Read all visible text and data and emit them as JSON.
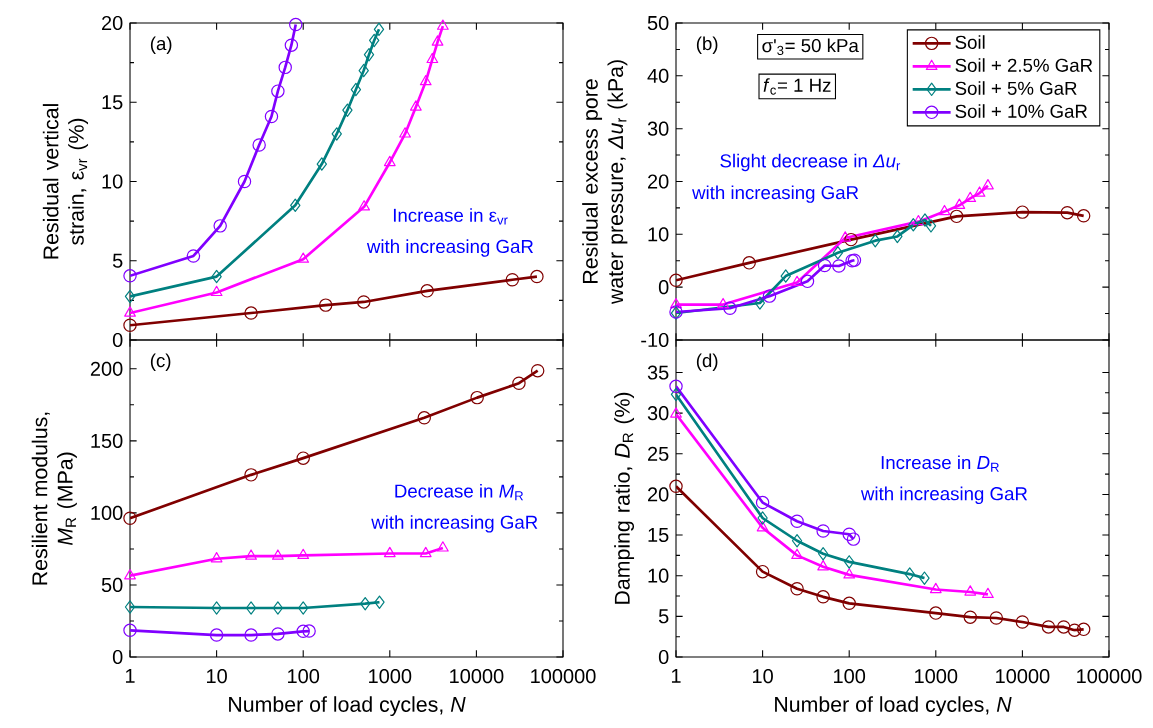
{
  "chart_data": [
    {
      "type": "line",
      "ylabel": "Residual vertical strain, ε$_{vr}$ (%)",
      "log": "x",
      "xlim": [
        1,
        100000
      ],
      "xticks": [
        1,
        10,
        100,
        1000,
        10000,
        100000
      ],
      "ylim": [
        0,
        20
      ],
      "yticks": [
        0,
        5,
        10,
        15,
        20
      ],
      "tick_labels": "y",
      "annotations": [
        "(a)",
        "Increase in ε$_{vr}$",
        "with increasing GaR"
      ],
      "series": [
        {
          "color": "#800000",
          "marker": "circle",
          "x": [
            1,
            25,
            182,
            500,
            2700,
            26000,
            50000
          ],
          "values": [
            0.93,
            1.7,
            2.2,
            2.4,
            3.1,
            3.8,
            4.0
          ]
        },
        {
          "color": "#ff00ff",
          "marker": "triangle",
          "x": [
            1,
            10,
            100,
            505,
            1000,
            1500,
            2000,
            2600,
            3100,
            3560,
            4100
          ],
          "values": [
            1.7,
            3.0,
            5.1,
            8.4,
            11.2,
            13.0,
            14.7,
            16.3,
            17.7,
            18.8,
            19.8
          ]
        },
        {
          "color": "#008080",
          "marker": "diamond",
          "x": [
            1,
            10,
            81,
            164,
            244,
            324,
            406,
            500,
            575,
            660,
            750
          ],
          "values": [
            2.75,
            4.0,
            8.5,
            11.1,
            13.0,
            14.5,
            15.8,
            17.0,
            18.0,
            18.9,
            19.6
          ]
        },
        {
          "color": "#8000ff",
          "marker": "circle",
          "x": [
            1,
            5.4,
            11,
            21,
            31,
            43,
            51,
            62,
            73,
            82
          ],
          "values": [
            4.05,
            5.3,
            7.2,
            10.0,
            12.3,
            14.1,
            15.7,
            17.2,
            18.6,
            19.9
          ]
        }
      ]
    },
    {
      "type": "line",
      "ylabel": "Residual excess pore water pressure, *Δu*$_{r}$ (kPa)",
      "log": "x",
      "xlim": [
        1,
        100000
      ],
      "xticks": [
        1,
        10,
        100,
        1000,
        10000,
        100000
      ],
      "ylim": [
        -10,
        50
      ],
      "yticks": [
        -10,
        0,
        10,
        20,
        30,
        40,
        50
      ],
      "tick_labels": "y",
      "legend": "top right",
      "annotations": [
        "(b)",
        "σ'$_{3}$= 50 kPa",
        "*f*$_{c}$= 1 Hz",
        "Slight decrease in *Δu*$_{r}$",
        "with increasing GaR"
      ],
      "series": [
        {
          "name": "Soil",
          "color": "#800000",
          "marker": "circle",
          "x": [
            1,
            7,
            105,
            1740,
            10000,
            33000,
            51000
          ],
          "values": [
            1.3,
            4.6,
            9.0,
            13.4,
            14.2,
            14.1,
            13.5
          ]
        },
        {
          "name": "Soil + 2.5% GaR",
          "color": "#ff00ff",
          "marker": "triangle",
          "x": [
            1,
            3.5,
            25,
            90,
            630,
            1260,
            1870,
            2500,
            3200,
            4000
          ],
          "values": [
            -3.3,
            -3.3,
            0.9,
            9.3,
            12.4,
            14.3,
            15.5,
            16.8,
            17.8,
            19.2
          ]
        },
        {
          "name": "Soil + 5% GaR",
          "color": "#008080",
          "marker": "diamond",
          "x": [
            1,
            9.3,
            18.5,
            74,
            200,
            360,
            550,
            750,
            880
          ],
          "values": [
            -4.9,
            -3.0,
            2.1,
            6.5,
            8.8,
            9.6,
            11.8,
            12.7,
            11.6
          ]
        },
        {
          "name": "Soil + 10% GaR",
          "color": "#8000ff",
          "marker": "circle",
          "x": [
            1,
            4.2,
            12,
            33,
            52,
            76,
            108,
            115
          ],
          "values": [
            -4.7,
            -4.0,
            -1.7,
            1.1,
            4.1,
            4.0,
            5.0,
            5.1
          ]
        }
      ]
    },
    {
      "type": "line",
      "ylabel": "Resilient modulus, *M*$_{R}$ (MPa)",
      "xlabel": "Number of load cycles, *N*",
      "log": "x",
      "xlim": [
        1,
        100000
      ],
      "xticks": [
        1,
        10,
        100,
        1000,
        10000,
        100000
      ],
      "ylim": [
        0,
        220
      ],
      "yticks": [
        0,
        50,
        100,
        150,
        200
      ],
      "annotations": [
        "(c)",
        "Decrease in *M*$_{R}$",
        "with increasing GaR"
      ],
      "series": [
        {
          "color": "#800000",
          "marker": "circle",
          "x": [
            1,
            25,
            100,
            2500,
            10200,
            31000,
            51000
          ],
          "values": [
            96.3,
            126.4,
            138,
            166,
            180,
            190,
            198.7
          ]
        },
        {
          "color": "#ff00ff",
          "marker": "triangle",
          "x": [
            1,
            10,
            25,
            51,
            100,
            1000,
            2600,
            4100
          ],
          "values": [
            56.4,
            68.2,
            70,
            70,
            70.5,
            71.8,
            71.8,
            75.7
          ]
        },
        {
          "color": "#008080",
          "marker": "diamond",
          "x": [
            1,
            10,
            25,
            51,
            100,
            520,
            760
          ],
          "values": [
            34.7,
            34,
            34,
            34,
            34,
            37,
            38
          ]
        },
        {
          "color": "#8000ff",
          "marker": "circle",
          "x": [
            1,
            10,
            25,
            51,
            100,
            117
          ],
          "values": [
            18.5,
            15.2,
            15.2,
            16,
            17.8,
            18
          ]
        }
      ]
    },
    {
      "type": "line",
      "ylabel": "Damping ratio, *D*$_{R}$ (%)",
      "xlabel": "Number of load cycles, *N*",
      "log": "x",
      "xlim": [
        1,
        100000
      ],
      "xticks": [
        1,
        10,
        100,
        1000,
        10000,
        100000
      ],
      "ylim": [
        0,
        39
      ],
      "yticks": [
        0,
        5,
        10,
        15,
        20,
        25,
        30,
        35
      ],
      "annotations": [
        "(d)",
        "Increase in *D*$_{R}$",
        "with increasing GaR"
      ],
      "series": [
        {
          "color": "#800000",
          "marker": "circle",
          "x": [
            1,
            10,
            25,
            50,
            100,
            1000,
            2500,
            5000,
            10000,
            20000,
            30000,
            40000,
            51000
          ],
          "values": [
            21.0,
            10.5,
            8.4,
            7.4,
            6.6,
            5.4,
            4.9,
            4.8,
            4.3,
            3.7,
            3.7,
            3.3,
            3.4
          ]
        },
        {
          "color": "#ff00ff",
          "marker": "triangle",
          "x": [
            1,
            10,
            25,
            50,
            100,
            1000,
            2500,
            4000
          ],
          "values": [
            29.9,
            15.9,
            12.5,
            11.1,
            10.1,
            8.3,
            8.0,
            7.7
          ]
        },
        {
          "color": "#008080",
          "marker": "diamond",
          "x": [
            1,
            10,
            25,
            50,
            100,
            500,
            740
          ],
          "values": [
            32.3,
            17.1,
            14.3,
            12.7,
            11.7,
            10.2,
            9.7
          ]
        },
        {
          "color": "#8000ff",
          "marker": "circle",
          "x": [
            1,
            10,
            25,
            50,
            100,
            112
          ],
          "values": [
            33.3,
            19.0,
            16.7,
            15.5,
            15.1,
            14.5
          ]
        }
      ]
    }
  ]
}
